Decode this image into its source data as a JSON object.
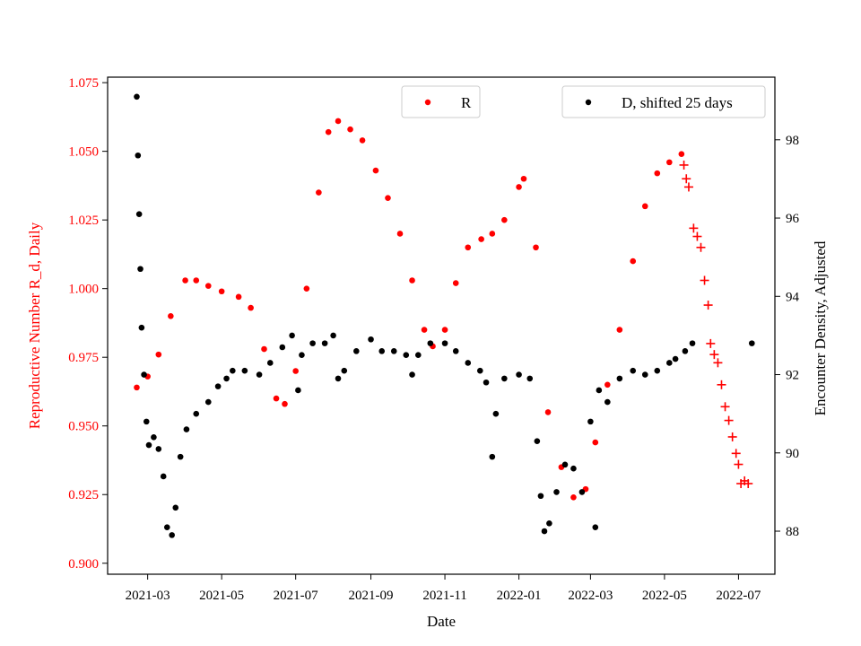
{
  "chart_data": {
    "type": "scatter",
    "xlabel": "Date",
    "ylabel_left": "Reproductive Number R_d, Daily",
    "ylabel_right": "Encounter Density, Adjusted",
    "x_ticks": [
      "2021-03",
      "2021-05",
      "2021-07",
      "2021-09",
      "2021-11",
      "2022-01",
      "2022-03",
      "2022-05",
      "2022-07"
    ],
    "y_left_ticks": [
      "0.900",
      "0.925",
      "0.950",
      "0.975",
      "1.000",
      "1.025",
      "1.050",
      "1.075"
    ],
    "y_right_ticks": [
      "88",
      "90",
      "92",
      "94",
      "96",
      "98"
    ],
    "xlim": [
      "2021-01-27",
      "2022-07-31"
    ],
    "ylim_left": [
      0.896,
      1.077
    ],
    "ylim_right": [
      86.9,
      99.6
    ],
    "grid": false,
    "colors": {
      "R": "#ff0000",
      "D": "#000000"
    },
    "legends": [
      {
        "label": "R",
        "placement": "top-center"
      },
      {
        "label": "D, shifted 25 days",
        "placement": "top-right"
      }
    ],
    "series": [
      {
        "name": "R",
        "axis": "left",
        "marker": "circle",
        "color": "#ff0000",
        "points": [
          [
            "2021-02-20",
            0.964
          ],
          [
            "2021-03-01",
            0.968
          ],
          [
            "2021-03-10",
            0.976
          ],
          [
            "2021-03-20",
            0.99
          ],
          [
            "2021-04-01",
            1.003
          ],
          [
            "2021-04-10",
            1.003
          ],
          [
            "2021-04-20",
            1.001
          ],
          [
            "2021-05-01",
            0.999
          ],
          [
            "2021-05-15",
            0.997
          ],
          [
            "2021-05-25",
            0.993
          ],
          [
            "2021-06-05",
            0.978
          ],
          [
            "2021-06-15",
            0.96
          ],
          [
            "2021-06-22",
            0.958
          ],
          [
            "2021-07-01",
            0.97
          ],
          [
            "2021-07-10",
            1.0
          ],
          [
            "2021-07-20",
            1.035
          ],
          [
            "2021-07-28",
            1.057
          ],
          [
            "2021-08-05",
            1.061
          ],
          [
            "2021-08-15",
            1.058
          ],
          [
            "2021-08-25",
            1.054
          ],
          [
            "2021-09-05",
            1.043
          ],
          [
            "2021-09-15",
            1.033
          ],
          [
            "2021-09-25",
            1.02
          ],
          [
            "2021-10-05",
            1.003
          ],
          [
            "2021-10-15",
            0.985
          ],
          [
            "2021-10-22",
            0.979
          ],
          [
            "2021-11-01",
            0.985
          ],
          [
            "2021-11-10",
            1.002
          ],
          [
            "2021-11-20",
            1.015
          ],
          [
            "2021-12-01",
            1.018
          ],
          [
            "2021-12-10",
            1.02
          ],
          [
            "2021-12-20",
            1.025
          ],
          [
            "2022-01-01",
            1.037
          ],
          [
            "2022-01-05",
            1.04
          ],
          [
            "2022-01-15",
            1.015
          ],
          [
            "2022-01-25",
            0.955
          ],
          [
            "2022-02-05",
            0.935
          ],
          [
            "2022-02-15",
            0.924
          ],
          [
            "2022-02-25",
            0.927
          ],
          [
            "2022-03-05",
            0.944
          ],
          [
            "2022-03-15",
            0.965
          ],
          [
            "2022-03-25",
            0.985
          ],
          [
            "2022-04-05",
            1.01
          ],
          [
            "2022-04-15",
            1.03
          ],
          [
            "2022-04-25",
            1.042
          ],
          [
            "2022-05-05",
            1.046
          ],
          [
            "2022-05-15",
            1.049
          ]
        ]
      },
      {
        "name": "R",
        "axis": "left",
        "marker": "plus",
        "color": "#ff0000",
        "points": [
          [
            "2022-05-17",
            1.045
          ],
          [
            "2022-05-19",
            1.04
          ],
          [
            "2022-05-21",
            1.037
          ],
          [
            "2022-05-25",
            1.022
          ],
          [
            "2022-05-28",
            1.019
          ],
          [
            "2022-05-31",
            1.015
          ],
          [
            "2022-06-03",
            1.003
          ],
          [
            "2022-06-06",
            0.994
          ],
          [
            "2022-06-08",
            0.98
          ],
          [
            "2022-06-11",
            0.976
          ],
          [
            "2022-06-14",
            0.973
          ],
          [
            "2022-06-17",
            0.965
          ],
          [
            "2022-06-20",
            0.957
          ],
          [
            "2022-06-23",
            0.952
          ],
          [
            "2022-06-26",
            0.946
          ],
          [
            "2022-06-29",
            0.94
          ],
          [
            "2022-07-01",
            0.936
          ],
          [
            "2022-07-03",
            0.929
          ],
          [
            "2022-07-06",
            0.93
          ],
          [
            "2022-07-09",
            0.929
          ]
        ]
      },
      {
        "name": "D, shifted 25 days",
        "axis": "right",
        "marker": "circle",
        "color": "#000000",
        "points": [
          [
            "2021-02-20",
            99.1
          ],
          [
            "2021-02-21",
            97.6
          ],
          [
            "2021-02-22",
            96.1
          ],
          [
            "2021-02-23",
            94.7
          ],
          [
            "2021-02-24",
            93.2
          ],
          [
            "2021-02-26",
            92.0
          ],
          [
            "2021-02-28",
            90.8
          ],
          [
            "2021-03-02",
            90.2
          ],
          [
            "2021-03-06",
            90.4
          ],
          [
            "2021-03-10",
            90.1
          ],
          [
            "2021-03-14",
            89.4
          ],
          [
            "2021-03-17",
            88.1
          ],
          [
            "2021-03-21",
            87.9
          ],
          [
            "2021-03-24",
            88.6
          ],
          [
            "2021-03-28",
            89.9
          ],
          [
            "2021-04-02",
            90.6
          ],
          [
            "2021-04-10",
            91.0
          ],
          [
            "2021-04-20",
            91.3
          ],
          [
            "2021-04-28",
            91.7
          ],
          [
            "2021-05-05",
            91.9
          ],
          [
            "2021-05-10",
            92.1
          ],
          [
            "2021-05-20",
            92.1
          ],
          [
            "2021-06-01",
            92.0
          ],
          [
            "2021-06-10",
            92.3
          ],
          [
            "2021-06-20",
            92.7
          ],
          [
            "2021-06-28",
            93.0
          ],
          [
            "2021-07-03",
            91.6
          ],
          [
            "2021-07-06",
            92.5
          ],
          [
            "2021-07-15",
            92.8
          ],
          [
            "2021-07-25",
            92.8
          ],
          [
            "2021-08-01",
            93.0
          ],
          [
            "2021-08-05",
            91.9
          ],
          [
            "2021-08-10",
            92.1
          ],
          [
            "2021-08-20",
            92.6
          ],
          [
            "2021-09-01",
            92.9
          ],
          [
            "2021-09-10",
            92.6
          ],
          [
            "2021-09-20",
            92.6
          ],
          [
            "2021-09-30",
            92.5
          ],
          [
            "2021-10-05",
            92.0
          ],
          [
            "2021-10-10",
            92.5
          ],
          [
            "2021-10-20",
            92.8
          ],
          [
            "2021-11-01",
            92.8
          ],
          [
            "2021-11-10",
            92.6
          ],
          [
            "2021-11-20",
            92.3
          ],
          [
            "2021-11-30",
            92.1
          ],
          [
            "2021-12-05",
            91.8
          ],
          [
            "2021-12-10",
            89.9
          ],
          [
            "2021-12-13",
            91.0
          ],
          [
            "2021-12-20",
            91.9
          ],
          [
            "2022-01-01",
            92.0
          ],
          [
            "2022-01-10",
            91.9
          ],
          [
            "2022-01-16",
            90.3
          ],
          [
            "2022-01-19",
            88.9
          ],
          [
            "2022-01-22",
            88.0
          ],
          [
            "2022-01-26",
            88.2
          ],
          [
            "2022-02-01",
            89.0
          ],
          [
            "2022-02-08",
            89.7
          ],
          [
            "2022-02-15",
            89.6
          ],
          [
            "2022-02-22",
            89.0
          ],
          [
            "2022-03-01",
            90.8
          ],
          [
            "2022-03-05",
            88.1
          ],
          [
            "2022-03-08",
            91.6
          ],
          [
            "2022-03-15",
            91.3
          ],
          [
            "2022-03-25",
            91.9
          ],
          [
            "2022-04-05",
            92.1
          ],
          [
            "2022-04-15",
            92.0
          ],
          [
            "2022-04-25",
            92.1
          ],
          [
            "2022-05-05",
            92.3
          ],
          [
            "2022-05-10",
            92.4
          ],
          [
            "2022-05-18",
            92.6
          ],
          [
            "2022-05-24",
            92.8
          ],
          [
            "2022-07-12",
            92.8
          ]
        ]
      }
    ]
  }
}
